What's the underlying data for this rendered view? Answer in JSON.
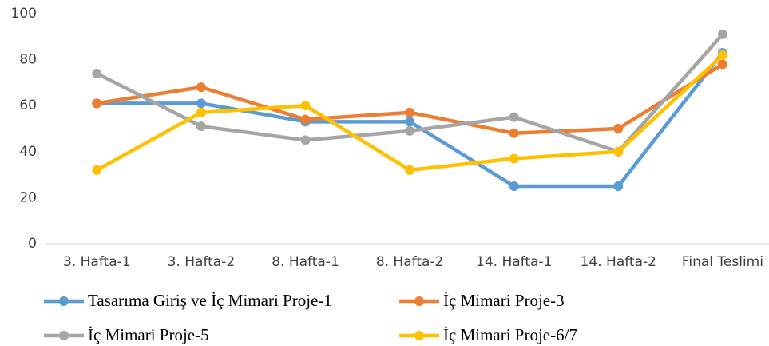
{
  "chart_data": {
    "type": "line",
    "categories": [
      "3. Hafta-1",
      "3. Hafta-2",
      "8. Hafta-1",
      "8. Hafta-2",
      "14. Hafta-1",
      "14. Hafta-2",
      "Final Teslimi"
    ],
    "series": [
      {
        "name": "Tasarıma Giriş ve İç Mimari Proje-1",
        "color": "#5b9bd5",
        "values": [
          61,
          61,
          53,
          53,
          25,
          25,
          83
        ]
      },
      {
        "name": "İç Mimari Proje-3",
        "color": "#ed7d31",
        "values": [
          61,
          68,
          54,
          57,
          48,
          50,
          78
        ]
      },
      {
        "name": "İç Mimari Proje-5",
        "color": "#a5a5a5",
        "values": [
          74,
          51,
          45,
          49,
          55,
          40,
          91
        ]
      },
      {
        "name": "İç Mimari Proje-6/7",
        "color": "#ffc000",
        "values": [
          32,
          57,
          60,
          32,
          37,
          40,
          82
        ]
      }
    ],
    "ylim": [
      0,
      100
    ],
    "yticks": [
      0,
      20,
      40,
      60,
      80,
      100
    ],
    "grid": false
  }
}
